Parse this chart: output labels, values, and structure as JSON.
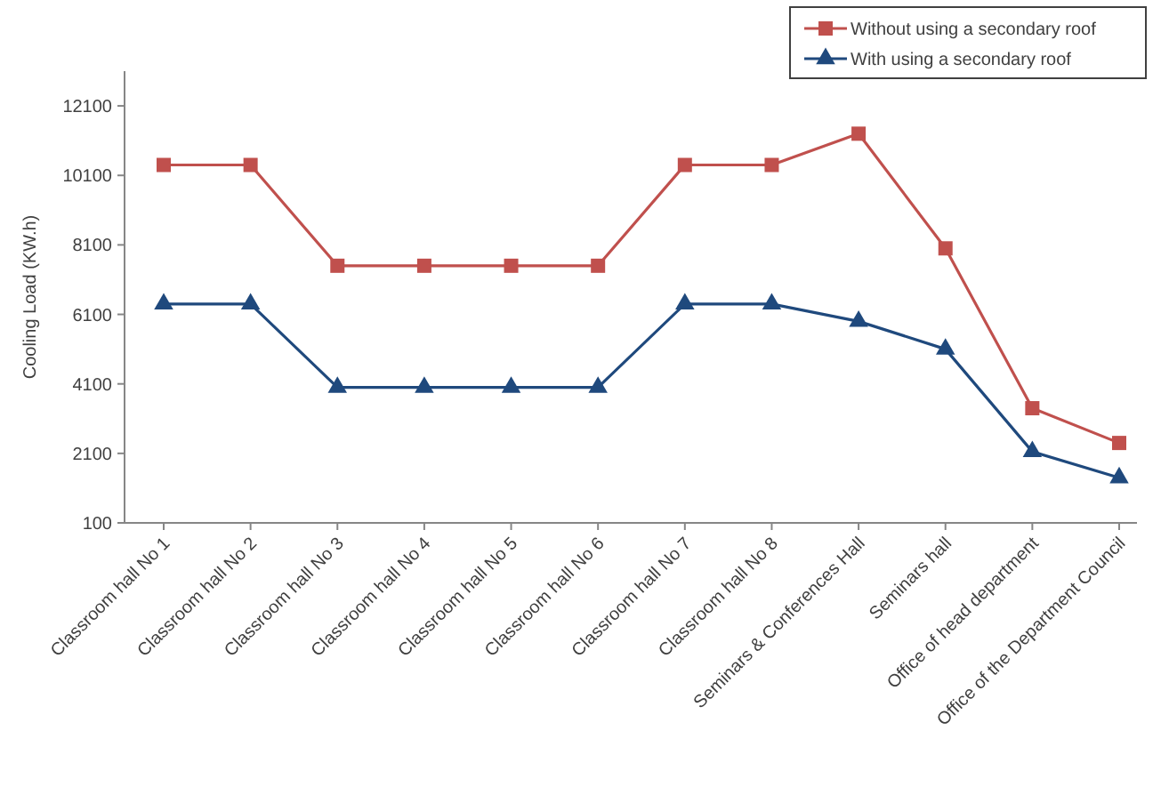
{
  "chart_data": {
    "type": "line",
    "ylabel": "Cooling Load (KW.h)",
    "categories": [
      "Classroom hall No 1",
      "Classroom hall No 2",
      "Classroom hall No 3",
      "Classroom hall No 4",
      "Classroom hall No 5",
      "Classroom hall No 6",
      "Classroom hall No 7",
      "Classroom hall No 8",
      "Seminars & Conferences Hall",
      "Seminars hall",
      "Office of head department",
      "Office of the Department Council"
    ],
    "series": [
      {
        "name": "Without using a secondary roof",
        "color": "#c0504d",
        "marker": "square",
        "values": [
          10400,
          10400,
          7500,
          7500,
          7500,
          7500,
          10400,
          10400,
          11300,
          8000,
          3400,
          2400
        ]
      },
      {
        "name": "With using a secondary roof",
        "color": "#1f497d",
        "marker": "triangle",
        "values": [
          6400,
          6400,
          4000,
          4000,
          4000,
          4000,
          6400,
          6400,
          5900,
          5100,
          2150,
          1400
        ]
      }
    ],
    "ylim": [
      100,
      13100
    ],
    "yticks": [
      100,
      2100,
      4100,
      6100,
      8100,
      10100,
      12100
    ],
    "grid": false,
    "legend": "top right",
    "line_style": "solid"
  }
}
